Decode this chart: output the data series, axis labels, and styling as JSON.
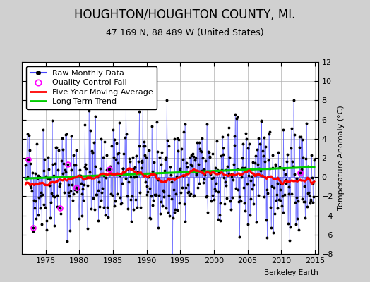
{
  "title": "HOUGHTON/HOUGHTON COUNTY, MI.",
  "subtitle": "47.169 N, 88.489 W (United States)",
  "ylabel": "Temperature Anomaly (°C)",
  "watermark": "Berkeley Earth",
  "ylim": [
    -8,
    12
  ],
  "yticks": [
    -8,
    -6,
    -4,
    -2,
    0,
    2,
    4,
    6,
    8,
    10,
    12
  ],
  "xlim": [
    1971.5,
    2015.5
  ],
  "xticks": [
    1975,
    1980,
    1985,
    1990,
    1995,
    2000,
    2005,
    2010,
    2015
  ],
  "start_year": 1972,
  "end_year": 2014,
  "seed": 42,
  "raw_color": "#4444ff",
  "dot_color": "#000000",
  "mavg_color": "#ff0000",
  "trend_color": "#00cc00",
  "qc_color": "#ff00ff",
  "bg_color": "#d0d0d0",
  "plot_bg_color": "#ffffff",
  "grid_color": "#b0b0b0",
  "title_fontsize": 12,
  "subtitle_fontsize": 9,
  "label_fontsize": 8,
  "tick_fontsize": 8,
  "legend_fontsize": 8,
  "trend_slope": 0.028,
  "trend_intercept": -0.15
}
